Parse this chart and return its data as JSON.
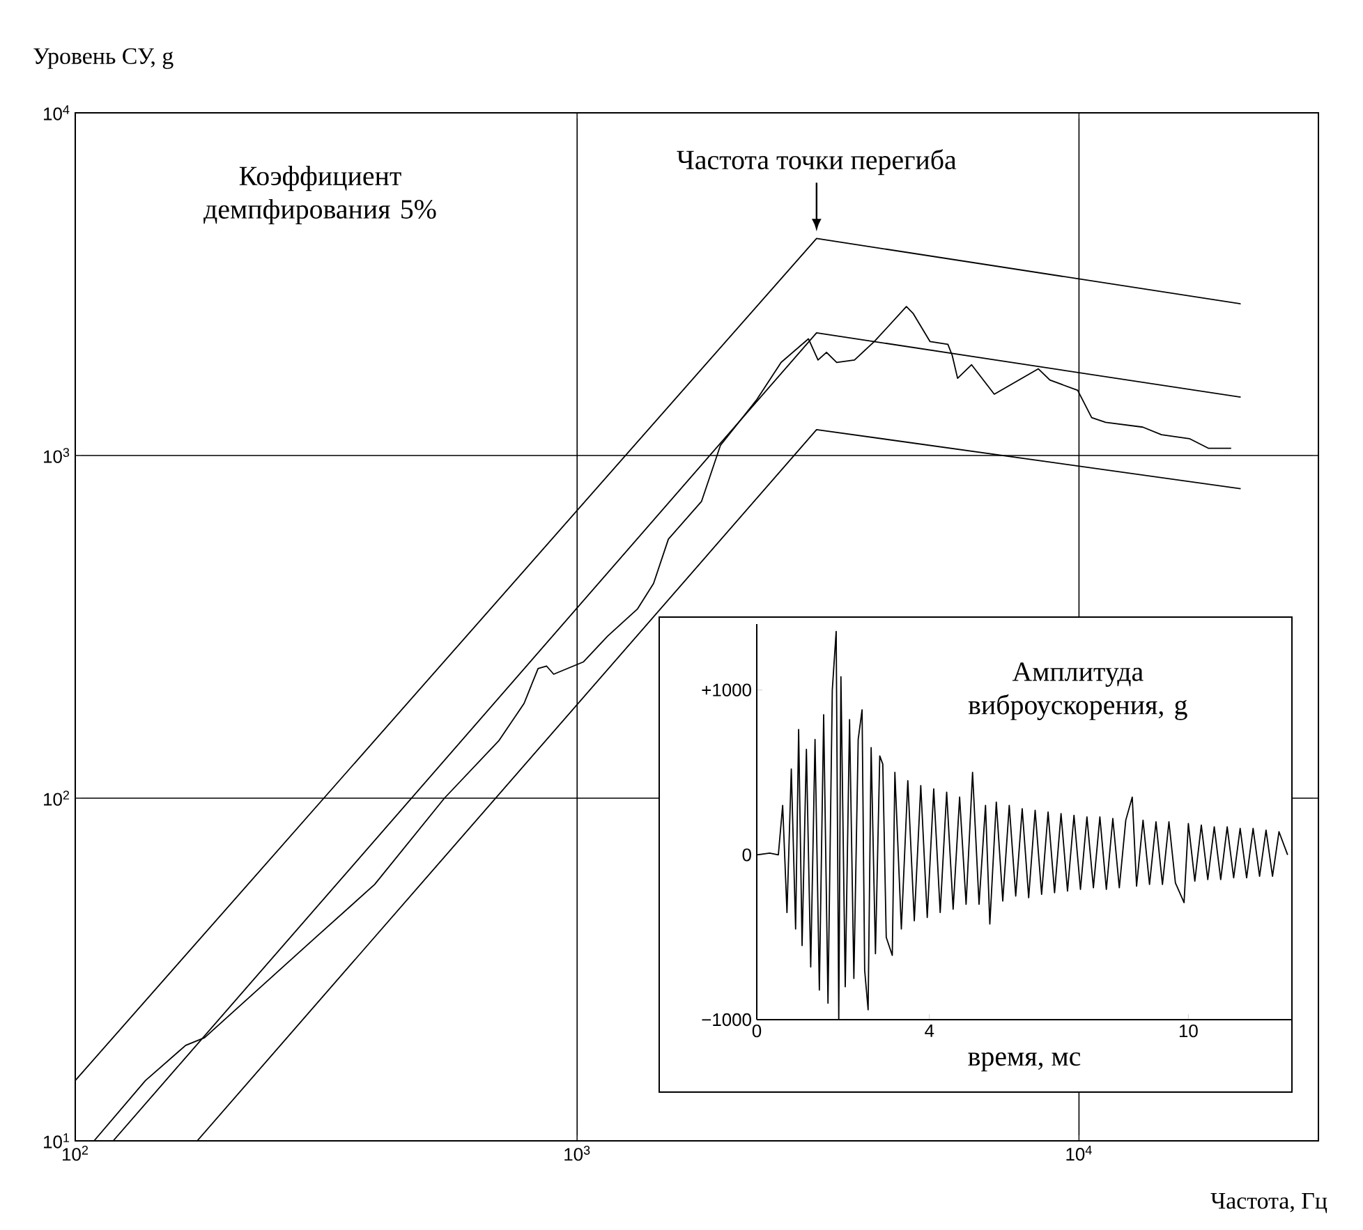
{
  "chart_data": [
    {
      "type": "line",
      "xlabel": "Частота, Гц",
      "ylabel": "Уровень СУ, g",
      "log": "xy",
      "grid": true,
      "xlim": [
        100,
        30000
      ],
      "ylim": [
        10,
        10000
      ],
      "xticks": [
        {
          "value": 100,
          "label": "10$^{2}$"
        },
        {
          "value": 1000,
          "label": "10$^{3}$"
        },
        {
          "value": 10000,
          "label": "10$^{4}$"
        }
      ],
      "yticks": [
        {
          "value": 10,
          "label": "10$^{1}$"
        },
        {
          "value": 100,
          "label": "10$^{2}$"
        },
        {
          "value": 1000,
          "label": "10$^{3}$"
        },
        {
          "value": 10000,
          "label": "10$^{4}$"
        }
      ],
      "annotations": [
        "Коэффициент демпфирования 5%",
        {
          "text": "Частота точки перегиба",
          "x": 3000,
          "y": 4300
        }
      ],
      "series": [
        {
          "color": "#000000",
          "x": [
            100,
            3000,
            21000
          ],
          "values": [
            15,
            4300,
            2770
          ]
        },
        {
          "color": "#000000",
          "x": [
            119,
            3000,
            21000
          ],
          "values": [
            10,
            2280,
            1480
          ]
        },
        {
          "color": "#000000",
          "x": [
            175,
            3000,
            21000
          ],
          "values": [
            10,
            1190,
            800
          ]
        },
        {
          "color": "#000000",
          "x": [
            109,
            138,
            166,
            181,
            300,
            395,
            544,
            698,
            784,
            836,
            869,
            898,
            1030,
            1150,
            1320,
            1420,
            1520,
            1770,
            1930,
            2280,
            2550,
            2890,
            3020,
            3140,
            3290,
            3570,
            3910,
            4530,
            4670,
            5050,
            5480,
            5590,
            5730,
            6110,
            6780,
            8300,
            8750,
            9940,
            10600,
            11300,
            13400,
            14600,
            16600,
            18100,
            20100
          ],
          "values": [
            10,
            15,
            19,
            20,
            39,
            56,
            100,
            147,
            189,
            239,
            243,
            230,
            250,
            297,
            357,
            423,
            570,
            735,
            1070,
            1455,
            1870,
            2190,
            1900,
            2000,
            1870,
            1900,
            2150,
            2720,
            2600,
            2150,
            2110,
            1960,
            1680,
            1840,
            1510,
            1790,
            1660,
            1550,
            1290,
            1250,
            1210,
            1150,
            1120,
            1050,
            1050
          ]
        }
      ]
    },
    {
      "type": "line",
      "xlabel": "время, мс",
      "ylabel": "Амплитуда виброускорения, g",
      "xlim": [
        0,
        12.4
      ],
      "ylim": [
        -1000,
        1400
      ],
      "xticks": [
        0,
        4,
        10
      ],
      "yticks": [
        {
          "value": 1000,
          "label": "+1000"
        },
        0,
        {
          "value": -1000,
          "label": "−1000"
        }
      ],
      "color": "#000000",
      "x": [
        0,
        0.3,
        0.5,
        0.6,
        0.7,
        0.8,
        0.9,
        0.97,
        1.05,
        1.15,
        1.25,
        1.35,
        1.45,
        1.55,
        1.65,
        1.75,
        1.84,
        1.9,
        1.95,
        2.05,
        2.15,
        2.25,
        2.35,
        2.44,
        2.5,
        2.58,
        2.65,
        2.75,
        2.85,
        2.92,
        3.0,
        3.14,
        3.2,
        3.35,
        3.5,
        3.65,
        3.8,
        3.95,
        4.1,
        4.25,
        4.4,
        4.55,
        4.7,
        4.85,
        5.0,
        5.15,
        5.3,
        5.4,
        5.55,
        5.7,
        5.85,
        6.0,
        6.15,
        6.3,
        6.45,
        6.6,
        6.75,
        6.9,
        7.05,
        7.2,
        7.35,
        7.5,
        7.65,
        7.8,
        7.95,
        8.1,
        8.25,
        8.4,
        8.55,
        8.7,
        8.8,
        8.95,
        9.1,
        9.25,
        9.4,
        9.55,
        9.7,
        9.9,
        10.0,
        10.15,
        10.3,
        10.45,
        10.6,
        10.75,
        10.9,
        11.05,
        11.2,
        11.35,
        11.5,
        11.65,
        11.8,
        11.95,
        12.1,
        12.3
      ],
      "values": [
        0,
        10,
        0,
        300,
        -350,
        520,
        -450,
        760,
        -550,
        640,
        -680,
        700,
        -820,
        850,
        -900,
        1000,
        1355,
        -1000,
        1080,
        -800,
        820,
        -750,
        700,
        880,
        -700,
        -940,
        650,
        -600,
        600,
        550,
        -500,
        -610,
        500,
        -450,
        450,
        -400,
        420,
        -380,
        400,
        -350,
        380,
        -330,
        350,
        -300,
        500,
        -300,
        300,
        -420,
        320,
        -280,
        300,
        -250,
        280,
        -260,
        270,
        -240,
        260,
        -230,
        250,
        -220,
        240,
        -210,
        230,
        -200,
        230,
        -210,
        220,
        -200,
        210,
        350,
        -190,
        210,
        -180,
        200,
        -180,
        200,
        -170,
        -290,
        190,
        -160,
        180,
        -150,
        170,
        -150,
        170,
        -140,
        160,
        -140,
        160,
        -130,
        150,
        -130,
        140,
        0
      ]
    }
  ]
}
